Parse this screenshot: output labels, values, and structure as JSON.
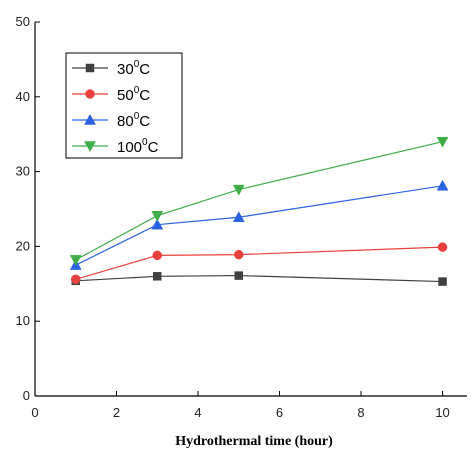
{
  "chart_data": {
    "type": "line",
    "xlabel": "Hydrothermal time (hour)",
    "ylabel": "",
    "xlim": [
      0,
      10.6
    ],
    "ylim": [
      0,
      50
    ],
    "xticks": [
      0,
      2,
      4,
      6,
      8,
      10
    ],
    "yticks": [
      0,
      10,
      20,
      30,
      40,
      50
    ],
    "x": [
      1,
      3,
      5,
      10
    ],
    "legend_position": "top-left",
    "series": [
      {
        "name": "30",
        "name_sup": "0",
        "name_suffix": "C",
        "marker": "square",
        "color": "#404040",
        "values": [
          15.4,
          16.0,
          16.1,
          15.3
        ]
      },
      {
        "name": "50",
        "name_sup": "0",
        "name_suffix": "C",
        "marker": "circle",
        "color": "#e8403c",
        "values": [
          15.6,
          18.8,
          18.9,
          19.9
        ]
      },
      {
        "name": "80",
        "name_sup": "0",
        "name_suffix": "C",
        "marker": "triangle-up",
        "color": "#2a62e0",
        "values": [
          17.5,
          22.9,
          23.9,
          28.1
        ]
      },
      {
        "name": "100",
        "name_sup": "0",
        "name_suffix": "C",
        "marker": "triangle-down",
        "color": "#3fae49",
        "values": [
          18.2,
          24.1,
          27.6,
          34.0
        ]
      }
    ]
  }
}
